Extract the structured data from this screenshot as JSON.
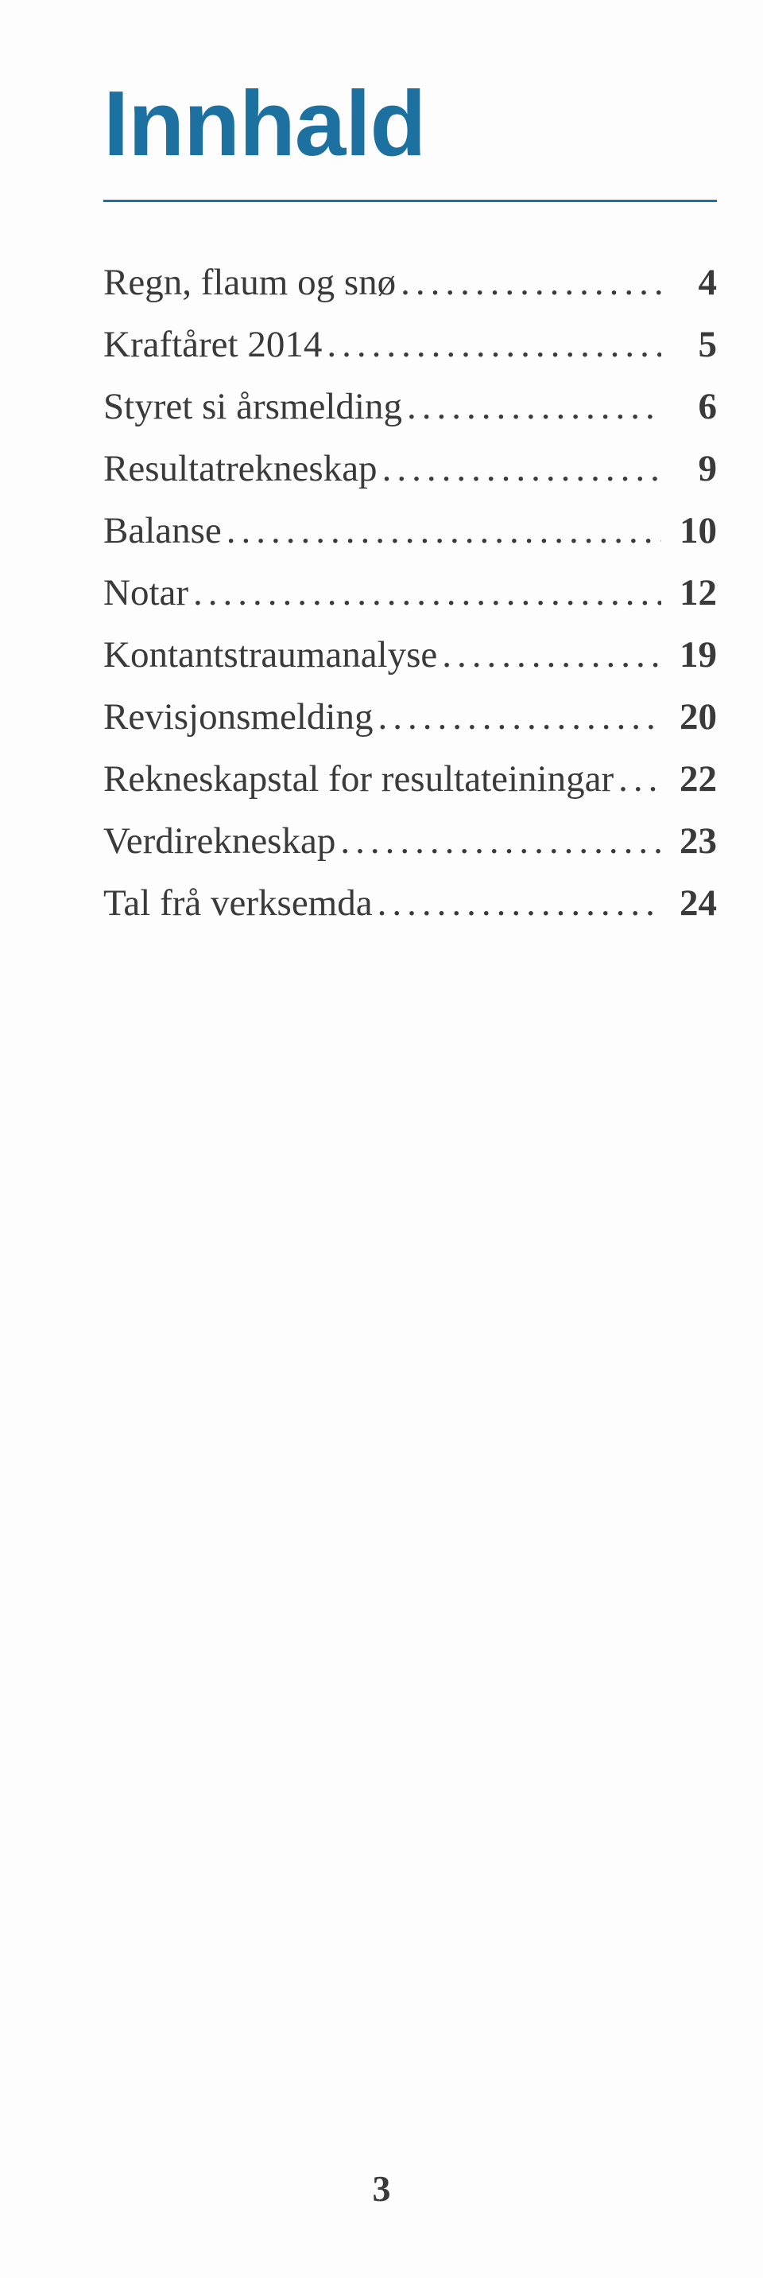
{
  "title": "Innhald",
  "title_color": "#1d71a0",
  "title_fontsize": 116,
  "rule_color": "#1d71a0",
  "rule_thickness": 3,
  "body_color": "#3a3a3a",
  "body_fontsize": 47,
  "page_number_color": "#3a3a3a",
  "page_number_fontsize": 46,
  "toc": [
    {
      "label": "Regn, flaum og snø",
      "page": "4"
    },
    {
      "label": "Kraftåret 2014",
      "page": "5"
    },
    {
      "label": "Styret si årsmelding",
      "page": "6"
    },
    {
      "label": "Resultatrekneskap",
      "page": "9"
    },
    {
      "label": "Balanse",
      "page": "10"
    },
    {
      "label": "Notar",
      "page": "12"
    },
    {
      "label": "Kontantstraumanalyse",
      "page": "19"
    },
    {
      "label": "Revisjonsmelding",
      "page": "20"
    },
    {
      "label": "Rekneskapstal for resultateiningar",
      "page": "22"
    },
    {
      "label": "Verdirekneskap",
      "page": "23"
    },
    {
      "label": "Tal frå verksemda",
      "page": "24"
    }
  ],
  "footer_page_number": "3"
}
